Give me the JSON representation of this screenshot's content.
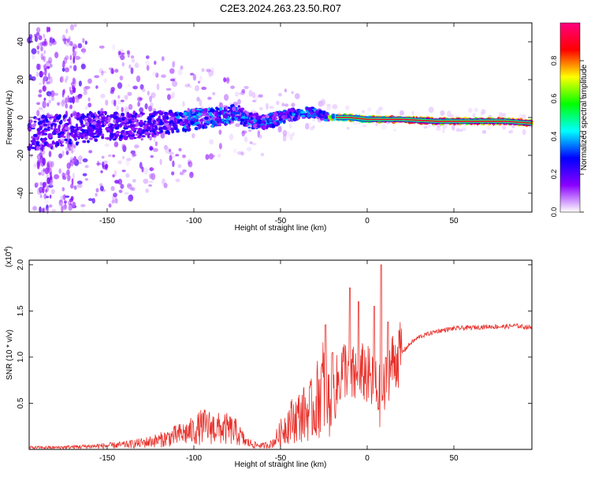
{
  "page": {
    "title": "C2E3.2024.263.23.50.R07"
  },
  "chart_data": [
    {
      "type": "heatmap",
      "name": "spectrogram",
      "xlabel": "Height of straight line (km)",
      "ylabel": "Frequency (Hz)",
      "xlim": [
        -195,
        95
      ],
      "ylim": [
        -50,
        50
      ],
      "xticks": [
        -150,
        -100,
        -50,
        0,
        50
      ],
      "yticks": [
        -40,
        -20,
        0,
        20,
        40
      ],
      "grid": false,
      "colorbar": {
        "label": "Normalized spectral amplitude",
        "range": [
          0,
          1
        ],
        "ticks": [
          "0.0",
          "0.2",
          "0.4",
          "0.6",
          "0.8"
        ],
        "tick_values": [
          0.0,
          0.2,
          0.4,
          0.6,
          0.8
        ],
        "colors": [
          "#ffffff",
          "#8a00ff",
          "#0000ff",
          "#00ffff",
          "#00ff00",
          "#ffff00",
          "#ff0000",
          "#ff0080"
        ]
      },
      "ridge": {
        "description_points": [
          [
            -195,
            -8
          ],
          [
            -175,
            -7
          ],
          [
            -160,
            -5
          ],
          [
            -150,
            -4
          ],
          [
            -140,
            -5
          ],
          [
            -130,
            -4
          ],
          [
            -120,
            -3
          ],
          [
            -110,
            -2
          ],
          [
            -100,
            -1
          ],
          [
            -90,
            0
          ],
          [
            -80,
            1
          ],
          [
            -75,
            3
          ],
          [
            -70,
            -1
          ],
          [
            -60,
            -3
          ],
          [
            -50,
            0
          ],
          [
            -40,
            2
          ],
          [
            -30,
            3
          ],
          [
            -25,
            1
          ],
          [
            -20,
            0
          ],
          [
            -10,
            0
          ],
          [
            0,
            -1
          ],
          [
            10,
            -1
          ],
          [
            20,
            -1
          ],
          [
            40,
            -2
          ],
          [
            60,
            -2
          ],
          [
            80,
            -2
          ],
          [
            95,
            -3
          ]
        ]
      }
    },
    {
      "type": "line",
      "name": "snr",
      "xlabel": "Height of straight line (km)",
      "ylabel": "SNR (10 * v/v)",
      "yscale_label": "(x10",
      "yscale_exp": "4",
      "ymultiplier": 10000,
      "xlim": [
        -195,
        95
      ],
      "ylim": [
        0,
        2.05
      ],
      "xticks": [
        -150,
        -100,
        -50,
        0,
        50
      ],
      "yticks": [
        0.5,
        1.0,
        1.5,
        2.0
      ],
      "ytick_labels": [
        "0.5",
        "1.0",
        "1.5",
        "2.0"
      ],
      "grid": false,
      "color": "#e8312b",
      "series": [
        {
          "x": [
            -195,
            -180,
            -165,
            -150,
            -140,
            -130,
            -120,
            -110,
            -100,
            -95,
            -90,
            -85,
            -80,
            -75,
            -70,
            -65,
            -60,
            -55,
            -50,
            -45,
            -40,
            -35,
            -30,
            -28,
            -25,
            -22,
            -20,
            -17,
            -15,
            -12,
            -10,
            -7,
            -5,
            -2,
            0,
            3,
            5,
            8,
            10,
            12,
            15,
            20,
            25,
            30,
            40,
            50,
            60,
            70,
            80,
            85,
            90,
            95
          ],
          "y": [
            0.02,
            0.02,
            0.03,
            0.04,
            0.05,
            0.07,
            0.1,
            0.15,
            0.2,
            0.25,
            0.24,
            0.22,
            0.22,
            0.18,
            0.08,
            0.05,
            0.04,
            0.06,
            0.18,
            0.3,
            0.35,
            0.4,
            0.45,
            0.6,
            0.7,
            0.5,
            0.6,
            0.7,
            0.85,
            0.9,
            0.75,
            0.8,
            0.7,
            0.85,
            0.8,
            0.7,
            0.65,
            0.55,
            0.65,
            0.85,
            0.95,
            1.05,
            1.15,
            1.22,
            1.28,
            1.31,
            1.32,
            1.33,
            1.33,
            1.34,
            1.33,
            1.32
          ]
        }
      ],
      "spikes": [
        {
          "x": -24,
          "y": 1.35
        },
        {
          "x": -20,
          "y": 1.05
        },
        {
          "x": -10,
          "y": 1.75
        },
        {
          "x": -5,
          "y": 1.6
        },
        {
          "x": 4,
          "y": 1.55
        },
        {
          "x": 8,
          "y": 2.0
        },
        {
          "x": 12,
          "y": 1.38
        }
      ]
    }
  ]
}
